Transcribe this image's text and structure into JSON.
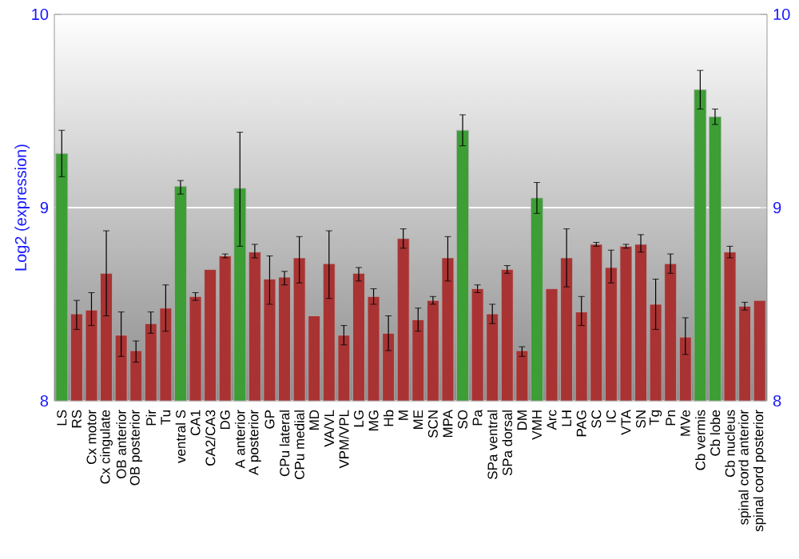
{
  "chart_data": {
    "type": "bar",
    "ylabel": "Log2 (expression)",
    "categories": [
      "LS",
      "RS",
      "Cx motor",
      "Cx cingulate",
      "OB anterior",
      "OB posterior",
      "Pir",
      "Tu",
      "ventral S",
      "CA1",
      "CA2/CA3",
      "DG",
      "A anterior",
      "A posterior",
      "GP",
      "CPu lateral",
      "CPu medial",
      "MD",
      "VA/VL",
      "VPM/VPL",
      "LG",
      "MG",
      "Hb",
      "M",
      "ME",
      "SCN",
      "MPA",
      "SO",
      "Pa",
      "SPa ventral",
      "SPa dorsal",
      "DM",
      "VMH",
      "Arc",
      "LH",
      "PAG",
      "SC",
      "IC",
      "VTA",
      "SN",
      "Tg",
      "Pn",
      "MVe",
      "Cb vermis",
      "Cb lobe",
      "Cb nucleus",
      "spinal cord anterior",
      "spinal cord posterior"
    ],
    "values": [
      9.28,
      8.45,
      8.47,
      8.66,
      8.34,
      8.26,
      8.4,
      8.48,
      9.11,
      8.54,
      8.68,
      8.75,
      9.1,
      8.77,
      8.63,
      8.64,
      8.74,
      8.44,
      8.71,
      8.34,
      8.66,
      8.54,
      8.35,
      8.84,
      8.42,
      8.52,
      8.74,
      9.4,
      8.58,
      8.45,
      8.68,
      8.26,
      9.05,
      8.58,
      8.74,
      8.46,
      8.81,
      8.69,
      8.8,
      8.81,
      8.5,
      8.71,
      8.33,
      9.61,
      9.47,
      8.77,
      8.49,
      8.52
    ],
    "errors": [
      [
        9.16,
        9.4
      ],
      [
        8.37,
        8.52
      ],
      [
        8.39,
        8.56
      ],
      [
        8.44,
        8.88
      ],
      [
        8.23,
        8.46
      ],
      [
        8.2,
        8.31
      ],
      [
        8.35,
        8.46
      ],
      [
        8.36,
        8.6
      ],
      [
        9.07,
        9.14
      ],
      [
        8.52,
        8.56
      ],
      null,
      [
        8.74,
        8.76
      ],
      [
        8.8,
        9.39
      ],
      [
        8.74,
        8.81
      ],
      [
        8.5,
        8.75
      ],
      [
        8.6,
        8.67
      ],
      [
        8.61,
        8.85
      ],
      null,
      [
        8.53,
        8.88
      ],
      [
        8.29,
        8.39
      ],
      [
        8.62,
        8.69
      ],
      [
        8.5,
        8.58
      ],
      [
        8.26,
        8.44
      ],
      [
        8.79,
        8.89
      ],
      [
        8.36,
        8.48
      ],
      [
        8.5,
        8.54
      ],
      [
        8.62,
        8.85
      ],
      [
        9.32,
        9.48
      ],
      [
        8.56,
        8.6
      ],
      [
        8.4,
        8.5
      ],
      [
        8.66,
        8.7
      ],
      [
        8.23,
        8.28
      ],
      [
        8.97,
        9.13
      ],
      null,
      [
        8.59,
        8.89
      ],
      [
        8.39,
        8.54
      ],
      [
        8.8,
        8.82
      ],
      [
        8.61,
        8.78
      ],
      [
        8.79,
        8.81
      ],
      [
        8.77,
        8.86
      ],
      [
        8.37,
        8.63
      ],
      [
        8.66,
        8.76
      ],
      [
        8.24,
        8.43
      ],
      [
        9.51,
        9.71
      ],
      [
        9.43,
        9.51
      ],
      [
        8.74,
        8.8
      ],
      [
        8.47,
        8.51
      ],
      null
    ],
    "colors": [
      "#3c9e35",
      "#a93333",
      "#a93333",
      "#a93333",
      "#a93333",
      "#a93333",
      "#a93333",
      "#a93333",
      "#3c9e35",
      "#a93333",
      "#a93333",
      "#a93333",
      "#3c9e35",
      "#a93333",
      "#a93333",
      "#a93333",
      "#a93333",
      "#a93333",
      "#a93333",
      "#a93333",
      "#a93333",
      "#a93333",
      "#a93333",
      "#a93333",
      "#a93333",
      "#a93333",
      "#a93333",
      "#3c9e35",
      "#a93333",
      "#a93333",
      "#a93333",
      "#a93333",
      "#3c9e35",
      "#a93333",
      "#a93333",
      "#a93333",
      "#a93333",
      "#a93333",
      "#a93333",
      "#a93333",
      "#a93333",
      "#a93333",
      "#a93333",
      "#3c9e35",
      "#3c9e35",
      "#a93333",
      "#a93333",
      "#a93333"
    ],
    "ylim": [
      8,
      10
    ],
    "yticks": [
      8,
      9,
      10
    ],
    "y2lim": [
      8,
      10
    ],
    "y2ticks": [
      8,
      9,
      10
    ],
    "grid": "y"
  }
}
